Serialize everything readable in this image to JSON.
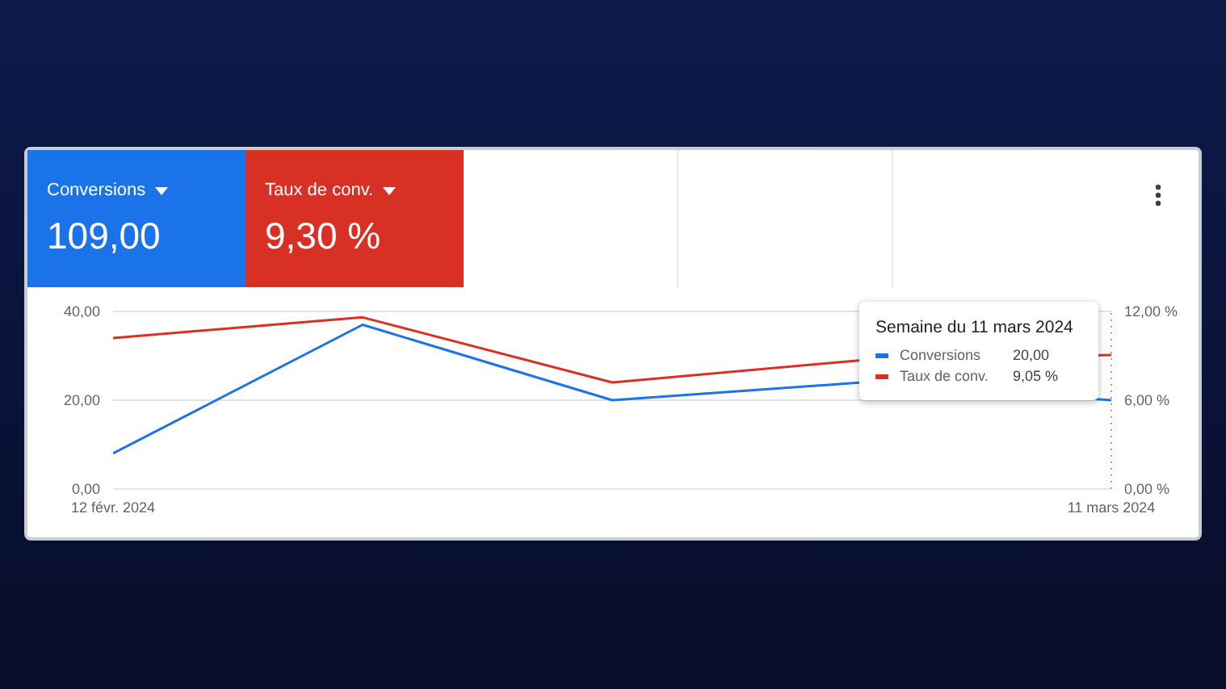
{
  "chart_data": {
    "type": "line",
    "categories": [
      "12 févr. 2024",
      null,
      null,
      null,
      "11 mars 2024"
    ],
    "series": [
      {
        "name": "Conversions",
        "color": "#1a73e8",
        "values": [
          8,
          37,
          20,
          24,
          20
        ]
      },
      {
        "name": "Taux de conv.",
        "color": "#d93025",
        "axis": "y2",
        "values": [
          10.2,
          11.6,
          7.2,
          8.7,
          9.05
        ]
      }
    ],
    "ylim": [
      0,
      40
    ],
    "yticks": [
      {
        "value": 0,
        "label": "0,00"
      },
      {
        "value": 20,
        "label": "20,00"
      },
      {
        "value": 40,
        "label": "40,00"
      }
    ],
    "y2lim": [
      0,
      12
    ],
    "y2ticks": [
      {
        "value": 0,
        "label": "0,00 %"
      },
      {
        "value": 6,
        "label": "6,00 %"
      },
      {
        "value": 12,
        "label": "12,00 %"
      }
    ],
    "grid": "y",
    "legend": "top right",
    "marker": "none",
    "line_style": "solid",
    "ref_lines": [
      {
        "axis": "x",
        "value": "11 mars 2024",
        "line_style": "dotted",
        "color": "#9aa0a6"
      }
    ],
    "annotations": [
      {
        "text": "Semaine du 11 mars 2024",
        "x": "11 mars 2024"
      },
      "Conversions",
      "109,00",
      "Taux de conv.",
      "9,30 %",
      "20,00",
      "9,05 %"
    ]
  }
}
